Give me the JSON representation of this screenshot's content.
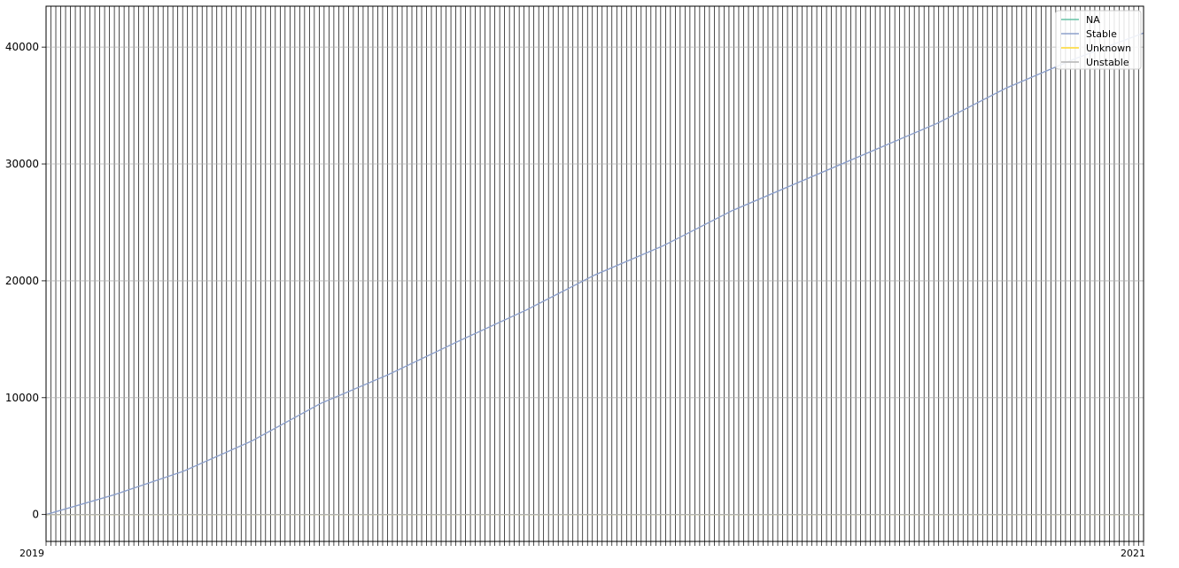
{
  "chart_data": {
    "type": "line",
    "title": "",
    "xlabel": "",
    "ylabel": "",
    "ylim": [
      -2300,
      43500
    ],
    "yticks": [
      0,
      10000,
      20000,
      30000,
      40000
    ],
    "grid": true,
    "legend_position": "top-right",
    "x_tick_count": 226,
    "x_tick_labels_visible": [
      "2019",
      "2021"
    ],
    "series": [
      {
        "name": "NA",
        "color": "#66c2a5",
        "values": [
          0,
          0
        ]
      },
      {
        "name": "Stable",
        "color": "#8da0cb",
        "values": [
          0,
          1700,
          3700,
          6300,
          9500,
          12000,
          14800,
          17500,
          20500,
          23000,
          26000,
          28500,
          31000,
          33500,
          36500,
          39000,
          41200
        ]
      },
      {
        "name": "Unknown",
        "color": "#ffd92f",
        "values": [
          0,
          0
        ]
      },
      {
        "name": "Unstable",
        "color": "#b3b3b3",
        "values": [
          0,
          0
        ]
      }
    ]
  }
}
